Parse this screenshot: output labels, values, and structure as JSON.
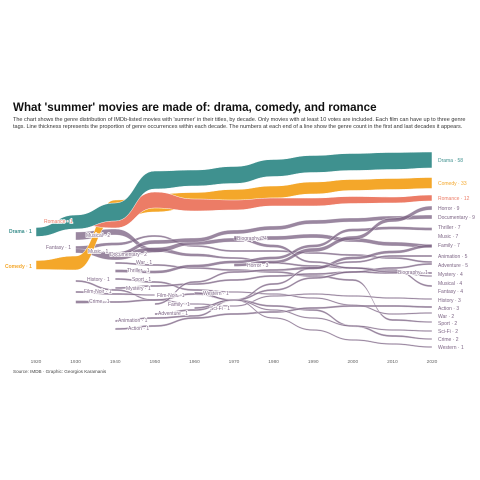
{
  "title": "What 'summer' movies are made of: drama, comedy, and romance",
  "subtitle": "The chart shows the genre distribution of IMDb-listed movies with 'summer' in their titles, by decade. Only movies with at least 10 votes are included. Each film can have up to three genre tags. Line thickness represents the proportion of genre occurrences within each decade. The numbers at each end of a line show the genre count in the first and last decades it appears.",
  "source": "Source: IMDB · Graphic: Georgios Karamanis",
  "colors": {
    "drama": "#3f918f",
    "comedy": "#f4a72a",
    "romance": "#ec7c66",
    "other": "#7d6585",
    "background": "#ffffff"
  },
  "chart_data": {
    "type": "area",
    "x": [
      1920,
      1930,
      1940,
      1950,
      1960,
      1970,
      1980,
      1990,
      2000,
      2010,
      2020
    ],
    "xlim": [
      1920,
      2020
    ],
    "grid": false,
    "series": [
      {
        "name": "Drama",
        "start_decade": 1920,
        "start_count": 1,
        "end_count": 58,
        "color": "drama"
      },
      {
        "name": "Comedy",
        "start_decade": 1920,
        "start_count": 1,
        "end_count": 33,
        "color": "comedy"
      },
      {
        "name": "Romance",
        "start_decade": 1930,
        "start_count": 1,
        "end_count": 12,
        "color": "romance"
      },
      {
        "name": "Fantasy",
        "start_decade": 1930,
        "start_count": 1,
        "end_count": 4,
        "color": "other"
      },
      {
        "name": "Musical",
        "start_decade": 1930,
        "start_count": 2,
        "end_count": 4,
        "color": "other"
      },
      {
        "name": "Music",
        "start_decade": 1930,
        "start_count": 1,
        "end_count": 7,
        "color": "other"
      },
      {
        "name": "Documentary",
        "start_decade": 1940,
        "start_count": 2,
        "end_count": 9,
        "color": "other"
      },
      {
        "name": "War",
        "start_decade": 1940,
        "start_count": 1,
        "end_count": 2,
        "color": "other"
      },
      {
        "name": "Thriller",
        "start_decade": 1940,
        "start_count": 1,
        "end_count": 7,
        "color": "other"
      },
      {
        "name": "Sport",
        "start_decade": 1940,
        "start_count": 1,
        "end_count": 2,
        "color": "other"
      },
      {
        "name": "Mystery",
        "start_decade": 1940,
        "start_count": 1,
        "end_count": 4,
        "color": "other"
      },
      {
        "name": "History",
        "start_decade": 1930,
        "start_count": 1,
        "end_count": 3,
        "color": "other"
      },
      {
        "name": "Film-Noir",
        "start_decade": 1930,
        "start_count": 1,
        "end_count": 1,
        "color": "other"
      },
      {
        "name": "Crime",
        "start_decade": 1930,
        "start_count": 1,
        "end_count": 2,
        "color": "other"
      },
      {
        "name": "Animation",
        "start_decade": 1940,
        "start_count": 1,
        "end_count": 5,
        "color": "other"
      },
      {
        "name": "Action",
        "start_decade": 1940,
        "start_count": 1,
        "end_count": 3,
        "color": "other"
      },
      {
        "name": "Family",
        "start_decade": 1950,
        "start_count": 1,
        "end_count": 7,
        "color": "other"
      },
      {
        "name": "Adventure",
        "start_decade": 1950,
        "start_count": 1,
        "end_count": 5,
        "color": "other"
      },
      {
        "name": "Western",
        "start_decade": 1960,
        "start_count": 1,
        "end_count": 1,
        "color": "other"
      },
      {
        "name": "Sci-Fi",
        "start_decade": 1960,
        "start_count": 1,
        "end_count": 2,
        "color": "other"
      },
      {
        "name": "Biography",
        "start_decade": 1970,
        "start_count": 4,
        "end_count": 1,
        "color": "other"
      },
      {
        "name": "Horror",
        "start_decade": 1970,
        "start_count": 3,
        "end_count": 9,
        "color": "other"
      }
    ],
    "start_labels": [
      "Drama · 1",
      "Comedy · 1",
      "Romance · 1",
      "Fantasy · 1",
      "Musical · 2",
      "Music · 1",
      "Documentary · 2",
      "War · 1",
      "Thriller · 1",
      "Sport · 1",
      "Mystery · 1",
      "History · 1",
      "Film-Noir · 1",
      "Crime · 1",
      "Animation · 1",
      "Action · 1",
      "Film-Noir · 1",
      "Western · 1",
      "Family · 1",
      "Adventure · 1",
      "Sci-Fi · 1",
      "Biography · 4",
      "Horror · 3",
      "Biography · 1"
    ],
    "end_labels": [
      "Drama · 58",
      "Comedy · 33",
      "Romance · 12",
      "Horror · 9",
      "Documentary · 9",
      "Thriller · 7",
      "Music · 7",
      "Family · 7",
      "Animation · 5",
      "Adventure · 5",
      "Mystery · 4",
      "Musical · 4",
      "Fantasy · 4",
      "History · 3",
      "Action · 3",
      "Sport · 2",
      "War · 2",
      "Sci-Fi · 2",
      "Crime · 2",
      "Western · 1"
    ]
  }
}
